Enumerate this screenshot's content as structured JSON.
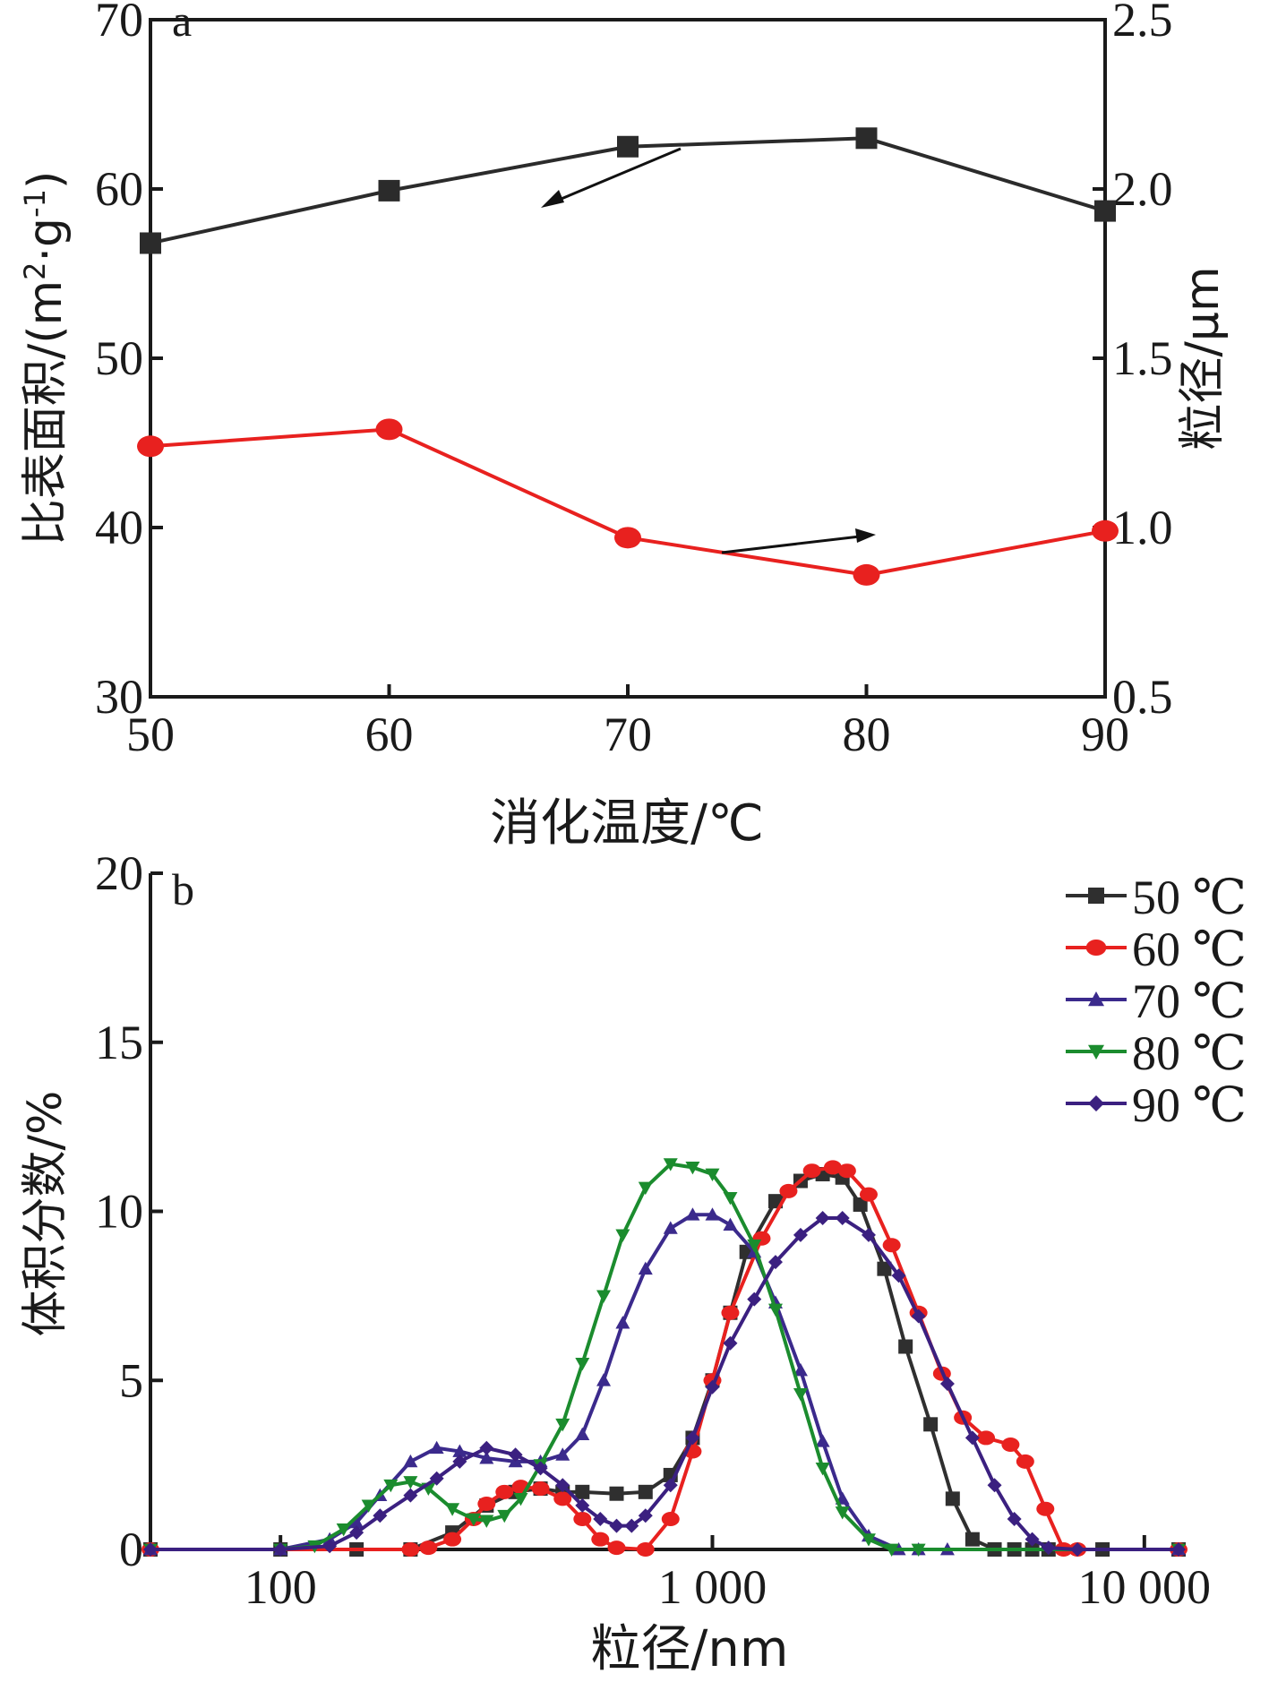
{
  "chart_data": [
    {
      "panel": "a",
      "type": "line",
      "xlabel": "消化温度/℃",
      "ylabel": "比表面积/(m²·g⁻¹)",
      "ylabel_sup1": "2",
      "ylabel_sup2": "-1",
      "y2label": "粒径/μm",
      "xlim": [
        50,
        90
      ],
      "ylim": [
        30,
        70
      ],
      "y2lim": [
        0.5,
        2.5
      ],
      "xticks": [
        "50",
        "60",
        "70",
        "80",
        "90"
      ],
      "yticks": [
        "30",
        "40",
        "50",
        "60",
        "70"
      ],
      "y2ticks": [
        "0.5",
        "1.0",
        "1.5",
        "2.0",
        "2.5"
      ],
      "x": [
        50,
        60,
        70,
        80,
        90
      ],
      "series": [
        {
          "axis": "left",
          "color": "#2b2b2b",
          "marker": "square",
          "values": [
            56.8,
            59.9,
            62.5,
            63.0,
            58.7
          ]
        },
        {
          "axis": "right",
          "color": "#e8211f",
          "marker": "circle",
          "values": [
            1.24,
            1.29,
            0.97,
            0.86,
            0.99
          ]
        }
      ]
    },
    {
      "panel": "b",
      "type": "line",
      "xlabel": "粒径/nm",
      "ylabel": "体积分数/%",
      "xscale": "log",
      "xlim": [
        50,
        12000
      ],
      "ylim": [
        0,
        20
      ],
      "xticks": [
        100,
        1000,
        10000
      ],
      "xtick_labels": [
        "100",
        "1 000",
        "10 000"
      ],
      "yticks": [
        "0",
        "5",
        "10",
        "15",
        "20"
      ],
      "series": [
        {
          "name": "50 ℃",
          "color": "#2f2f2f",
          "marker": "square",
          "x": [
            50,
            100,
            150,
            200,
            250,
            300,
            350,
            400,
            450,
            500,
            600,
            700,
            800,
            900,
            1000,
            1100,
            1200,
            1400,
            1600,
            1800,
            2000,
            2200,
            2500,
            2800,
            3200,
            3600,
            4000,
            4500,
            5000,
            5500,
            6000,
            8000,
            12000
          ],
          "values": [
            0,
            0,
            0,
            0,
            0.5,
            1.3,
            1.7,
            1.8,
            1.7,
            1.7,
            1.65,
            1.7,
            2.2,
            3.3,
            5.0,
            7.0,
            8.8,
            10.3,
            10.9,
            11.1,
            11.0,
            10.2,
            8.3,
            6.0,
            3.7,
            1.5,
            0.3,
            0,
            0,
            0,
            0,
            0,
            0
          ]
        },
        {
          "name": "60 ℃",
          "color": "#e8211f",
          "marker": "circle",
          "x": [
            50,
            200,
            220,
            250,
            280,
            300,
            330,
            360,
            400,
            450,
            500,
            550,
            600,
            700,
            800,
            900,
            1000,
            1100,
            1300,
            1500,
            1700,
            1900,
            2050,
            2300,
            2600,
            3000,
            3400,
            3800,
            4300,
            4900,
            5300,
            5900,
            6500,
            7000,
            12000
          ],
          "values": [
            0,
            0,
            0.05,
            0.3,
            0.9,
            1.35,
            1.7,
            1.85,
            1.8,
            1.5,
            0.9,
            0.3,
            0.05,
            0,
            0.9,
            2.9,
            5.0,
            7.0,
            9.2,
            10.6,
            11.2,
            11.3,
            11.2,
            10.5,
            9.0,
            7.0,
            5.2,
            3.9,
            3.3,
            3.1,
            2.6,
            1.2,
            0,
            0,
            0
          ]
        },
        {
          "name": "70 ℃",
          "color": "#3b2a8c",
          "marker": "triangle-up",
          "x": [
            50,
            100,
            130,
            150,
            170,
            200,
            230,
            260,
            300,
            350,
            400,
            450,
            500,
            560,
            620,
            700,
            800,
            900,
            1000,
            1100,
            1250,
            1400,
            1600,
            1800,
            2000,
            2300,
            2700,
            3000,
            3500,
            12000
          ],
          "values": [
            0,
            0,
            0.3,
            0.8,
            1.6,
            2.6,
            3.0,
            2.9,
            2.7,
            2.6,
            2.6,
            2.8,
            3.4,
            5.0,
            6.7,
            8.3,
            9.5,
            9.9,
            9.9,
            9.6,
            8.8,
            7.3,
            5.3,
            3.2,
            1.5,
            0.4,
            0,
            0,
            0,
            0
          ]
        },
        {
          "name": "80 ℃",
          "color": "#1b8c2e",
          "marker": "triangle-down",
          "x": [
            50,
            100,
            120,
            140,
            160,
            180,
            200,
            220,
            250,
            280,
            300,
            330,
            360,
            400,
            450,
            500,
            560,
            620,
            700,
            800,
            900,
            1000,
            1100,
            1250,
            1400,
            1600,
            1800,
            2000,
            2300,
            2600,
            3000,
            12000
          ],
          "values": [
            0,
            0,
            0.1,
            0.6,
            1.3,
            1.9,
            2.0,
            1.8,
            1.2,
            0.9,
            0.85,
            1.0,
            1.5,
            2.5,
            3.7,
            5.5,
            7.5,
            9.3,
            10.7,
            11.4,
            11.3,
            11.1,
            10.4,
            9.0,
            7.1,
            4.6,
            2.4,
            1.1,
            0.3,
            0,
            0,
            0
          ]
        },
        {
          "name": "90 ℃",
          "color": "#3b2080",
          "marker": "diamond",
          "x": [
            50,
            100,
            130,
            150,
            170,
            200,
            230,
            260,
            300,
            350,
            400,
            450,
            500,
            550,
            600,
            650,
            700,
            800,
            900,
            1000,
            1100,
            1250,
            1400,
            1600,
            1800,
            2000,
            2300,
            2700,
            3000,
            3500,
            4000,
            4500,
            5000,
            5500,
            6000,
            7000,
            12000
          ],
          "values": [
            0,
            0,
            0.1,
            0.5,
            1.0,
            1.6,
            2.1,
            2.6,
            3.0,
            2.8,
            2.4,
            1.9,
            1.3,
            0.9,
            0.7,
            0.7,
            1.0,
            1.9,
            3.3,
            4.8,
            6.1,
            7.4,
            8.5,
            9.3,
            9.8,
            9.8,
            9.3,
            8.1,
            6.9,
            4.9,
            3.3,
            1.9,
            0.9,
            0.3,
            0.05,
            0,
            0
          ]
        }
      ],
      "legend_position": "top-right"
    }
  ],
  "panel_labels": {
    "a": "a",
    "b": "b"
  }
}
